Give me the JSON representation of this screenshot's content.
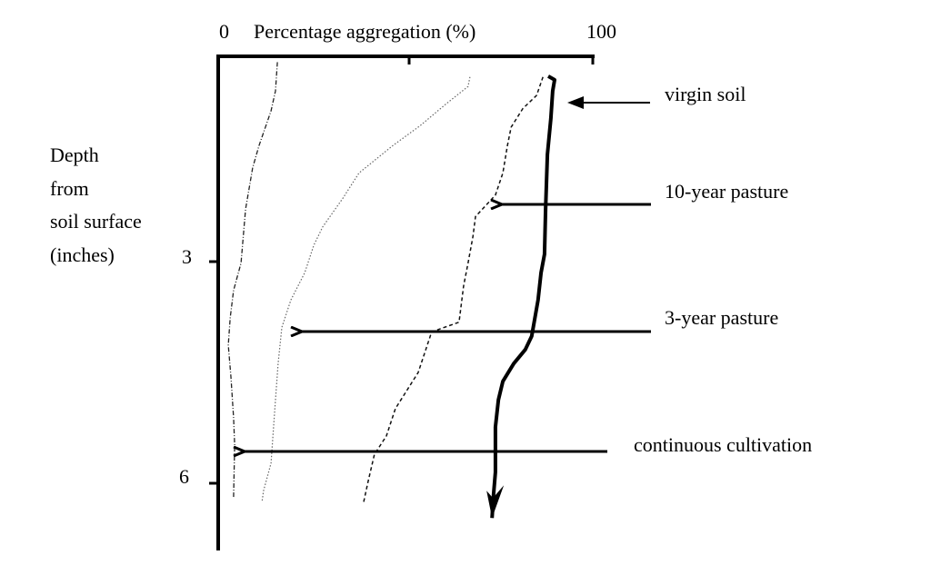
{
  "chart_data": {
    "type": "line",
    "xlabel": "Percentage aggregation (%)",
    "xlim": [
      0,
      100
    ],
    "x_ticks": [
      "0",
      "100"
    ],
    "ylabel_lines": [
      "Depth",
      "from",
      "soil surface",
      "(inches)"
    ],
    "y_ticks": [
      "3",
      "6"
    ],
    "y_inverted": true,
    "grid": false,
    "series": [
      {
        "name": "virgin soil",
        "style": "thick-solid",
        "x": [
          88.1,
          89.8,
          89.3,
          88.8,
          87.9,
          87.4,
          87.1,
          86.2,
          85.4,
          83.7,
          82.0,
          78.9,
          76.0,
          74.8,
          74.0,
          74.0,
          73.5,
          73.1
        ],
        "depth": [
          0.49,
          0.54,
          0.69,
          1.06,
          1.55,
          2.29,
          2.9,
          3.15,
          3.52,
          4.01,
          4.19,
          4.38,
          4.62,
          4.87,
          5.24,
          5.85,
          6.16,
          6.47
        ]
      },
      {
        "name": "10-year pasture",
        "style": "dashed",
        "x": [
          86.7,
          85.0,
          81.3,
          78.2,
          77.2,
          76.0,
          74.0,
          68.7,
          68.0,
          66.7,
          65.5,
          64.3,
          57.0,
          53.4,
          47.3,
          44.9,
          41.7,
          40.0,
          38.8
        ],
        "depth": [
          0.5,
          0.75,
          0.93,
          1.18,
          1.43,
          1.8,
          2.1,
          2.39,
          2.66,
          3.02,
          3.33,
          3.82,
          3.95,
          4.5,
          4.99,
          5.36,
          5.61,
          5.98,
          6.26
        ]
      },
      {
        "name": "3-year pasture",
        "style": "dotted",
        "x": [
          67.2,
          66.7,
          60.7,
          53.9,
          46.6,
          37.6,
          33.3,
          27.9,
          25.5,
          23.1,
          19.4,
          17.0,
          16.0,
          15.3,
          14.6,
          14.1,
          12.1,
          11.7
        ],
        "depth": [
          0.5,
          0.63,
          0.87,
          1.16,
          1.43,
          1.8,
          2.14,
          2.53,
          2.78,
          3.15,
          3.52,
          3.89,
          4.38,
          4.87,
          5.36,
          5.73,
          6.1,
          6.25
        ]
      },
      {
        "name": "continuous cultivation",
        "style": "dash-dot",
        "x": [
          15.8,
          15.3,
          14.1,
          10.9,
          9.2,
          7.3,
          6.1,
          4.1,
          3.2,
          2.7,
          3.4,
          4.1,
          4.4,
          4.1
        ],
        "depth": [
          0.3,
          0.69,
          0.96,
          1.43,
          1.73,
          2.29,
          3.02,
          3.39,
          3.76,
          4.13,
          4.56,
          5.11,
          5.48,
          6.2
        ]
      }
    ],
    "annotations": [
      "virgin soil",
      "10-year pasture",
      "3-year pasture",
      "continuous cultivation"
    ]
  }
}
